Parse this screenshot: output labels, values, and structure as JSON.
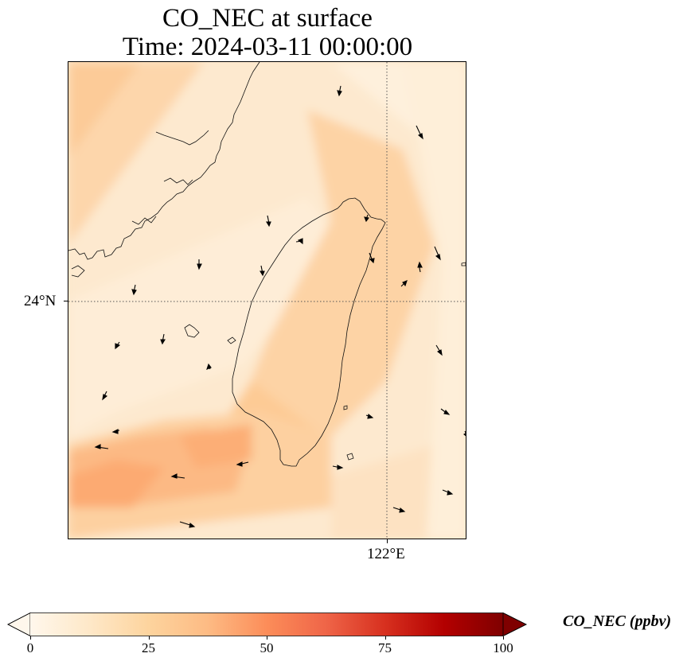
{
  "title_line_1": "CO_NEC at surface",
  "title_line_2": "Time: 2024-03-11 00:00:00",
  "map": {
    "latitude_label": "24°N",
    "longitude_label": "122°E",
    "field": "CO_NEC",
    "region": "Taiwan",
    "wind_vectors_shown": true,
    "gridlines": "dotted"
  },
  "colorbar": {
    "label": "CO_NEC (ppbv)",
    "colormap": "OrRd",
    "min": 0,
    "max": 100,
    "extend": "both",
    "ticks": [
      "0",
      "25",
      "50",
      "75",
      "100"
    ],
    "colors": [
      "#fff7ec",
      "#fee8c8",
      "#fdd49e",
      "#fdbb84",
      "#fc8d59",
      "#ef6548",
      "#d7301f",
      "#b30000",
      "#7f0000"
    ]
  }
}
